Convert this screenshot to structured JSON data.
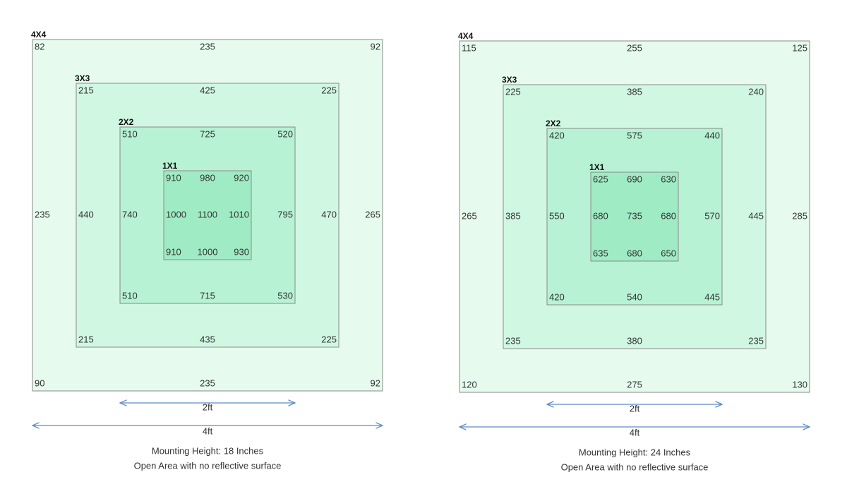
{
  "panels": [
    {
      "squares": [
        {
          "label": "4X4",
          "values": [
            82,
            235,
            92,
            235,
            265,
            90,
            235,
            92
          ]
        },
        {
          "label": "3X3",
          "values": [
            215,
            425,
            225,
            440,
            470,
            215,
            435,
            225
          ]
        },
        {
          "label": "2X2",
          "values": [
            510,
            725,
            520,
            740,
            795,
            510,
            715,
            530
          ]
        },
        {
          "label": "1X1",
          "values": [
            910,
            980,
            920,
            1000,
            1100,
            1010,
            910,
            1000,
            930
          ]
        }
      ],
      "inner_dimension": "2ft",
      "outer_dimension": "4ft",
      "mounting_height": "Mounting Height:  18 Inches",
      "note": "Open Area with no reflective surface"
    },
    {
      "squares": [
        {
          "label": "4X4",
          "values": [
            115,
            255,
            125,
            265,
            285,
            120,
            275,
            130
          ]
        },
        {
          "label": "3X3",
          "values": [
            225,
            385,
            240,
            385,
            445,
            235,
            380,
            235
          ]
        },
        {
          "label": "2X2",
          "values": [
            420,
            575,
            440,
            550,
            570,
            420,
            540,
            445
          ]
        },
        {
          "label": "1X1",
          "values": [
            625,
            690,
            630,
            680,
            735,
            680,
            635,
            680,
            650
          ]
        }
      ],
      "inner_dimension": "2ft",
      "outer_dimension": "4ft",
      "mounting_height": "Mounting Height:  24 Inches",
      "note": "Open Area with no reflective surface"
    }
  ]
}
